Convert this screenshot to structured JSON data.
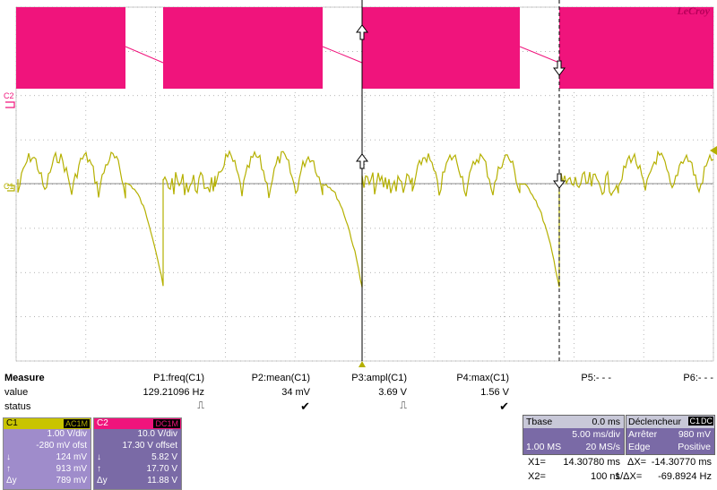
{
  "logo": "LeCroy",
  "channels": {
    "c2_marker": "C2",
    "c1_marker": "C1",
    "c1_color": "#b5b000",
    "c2_color": "#f0147c"
  },
  "measure": {
    "title": "Measure",
    "row_value_label": "value",
    "row_status_label": "status",
    "params": [
      {
        "name": "P1:freq(C1)",
        "value": "129.21096 Hz",
        "status": "pulse-icon"
      },
      {
        "name": "P2:mean(C1)",
        "value": "34 mV",
        "status": "check-icon"
      },
      {
        "name": "P3:ampl(C1)",
        "value": "3.69 V",
        "status": "pulse-icon"
      },
      {
        "name": "P4:max(C1)",
        "value": "1.56 V",
        "status": "check-icon"
      },
      {
        "name": "P5:- - -",
        "value": "",
        "status": ""
      },
      {
        "name": "P6:- - -",
        "value": "",
        "status": ""
      }
    ]
  },
  "c1_box": {
    "name": "C1",
    "coupling": "AC1M",
    "vdiv": "1.00 V/div",
    "offset": "-280 mV ofst",
    "down_val": "124 mV",
    "up_val": "913 mV",
    "dy_label": "Δy",
    "dy_val": "789 mV"
  },
  "c2_box": {
    "name": "C2",
    "coupling": "DC1M",
    "vdiv": "10.0 V/div",
    "offset": "17.30 V offset",
    "down_val": "5.82 V",
    "up_val": "17.70 V",
    "dy_label": "Δy",
    "dy_val": "11.88 V"
  },
  "timebase": {
    "label": "Tbase",
    "delay": "0.0 ms",
    "tdiv": "5.00 ms/div",
    "samples": "1.00 MS",
    "rate": "20 MS/s"
  },
  "trigger": {
    "label": "Déclencheur",
    "src": "C1",
    "coupling": "DC",
    "mode": "Arrêter",
    "level": "980 mV",
    "type": "Edge",
    "slope": "Positive"
  },
  "cursors": {
    "x1_label": "X1=",
    "x1": "14.30780 ms",
    "dx_label": "ΔX=",
    "dx": "-14.30770 ms",
    "x2_label": "X2=",
    "x2": "100 ns",
    "inv_label": "1/ΔX=",
    "inv": "-69.8924 Hz"
  }
}
